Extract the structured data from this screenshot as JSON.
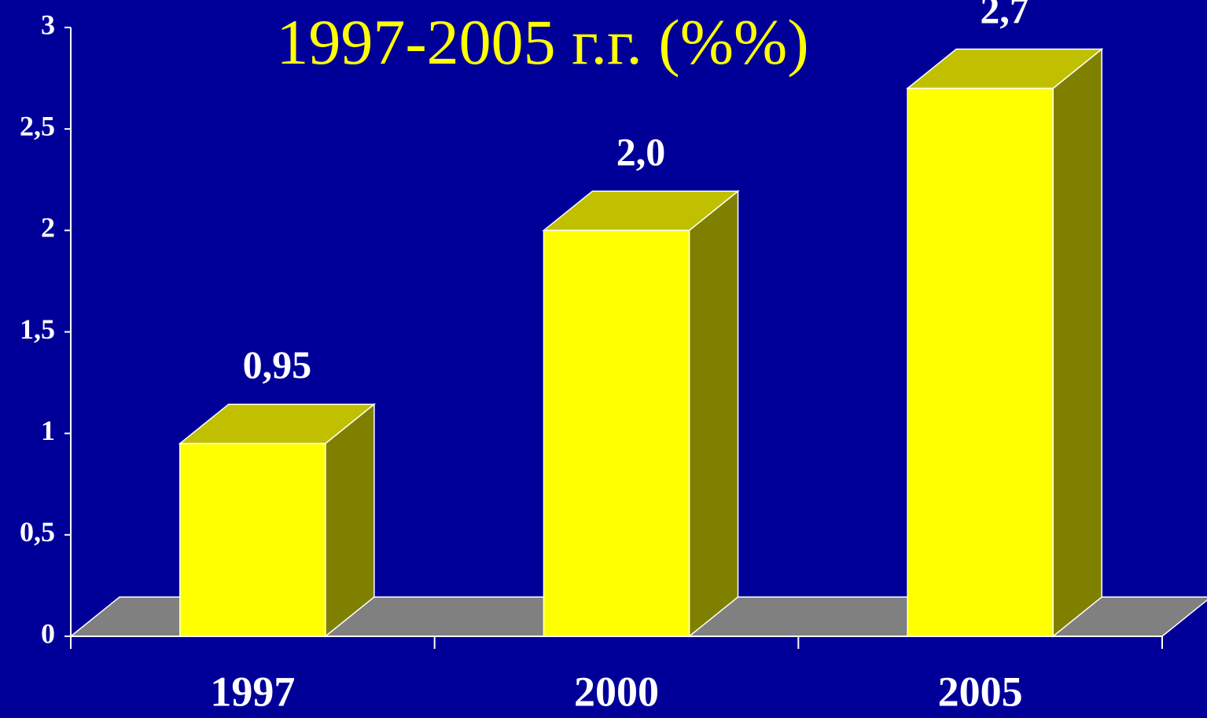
{
  "chart_data": {
    "type": "bar3d",
    "title": "1997-2005 г.г. (%%)",
    "categories": [
      "1997",
      "2000",
      "2005"
    ],
    "values": [
      0.95,
      2.0,
      2.7
    ],
    "value_labels": [
      "0,95",
      "2,0",
      "2,7"
    ],
    "color": "#ffff00",
    "ylim": [
      0,
      3
    ],
    "yticks": [
      0,
      {
        "value": 0.5,
        "label": "0,5"
      },
      1,
      {
        "value": 1.5,
        "label": "1,5"
      },
      2,
      {
        "value": 2.5,
        "label": "2,5"
      },
      3
    ]
  }
}
